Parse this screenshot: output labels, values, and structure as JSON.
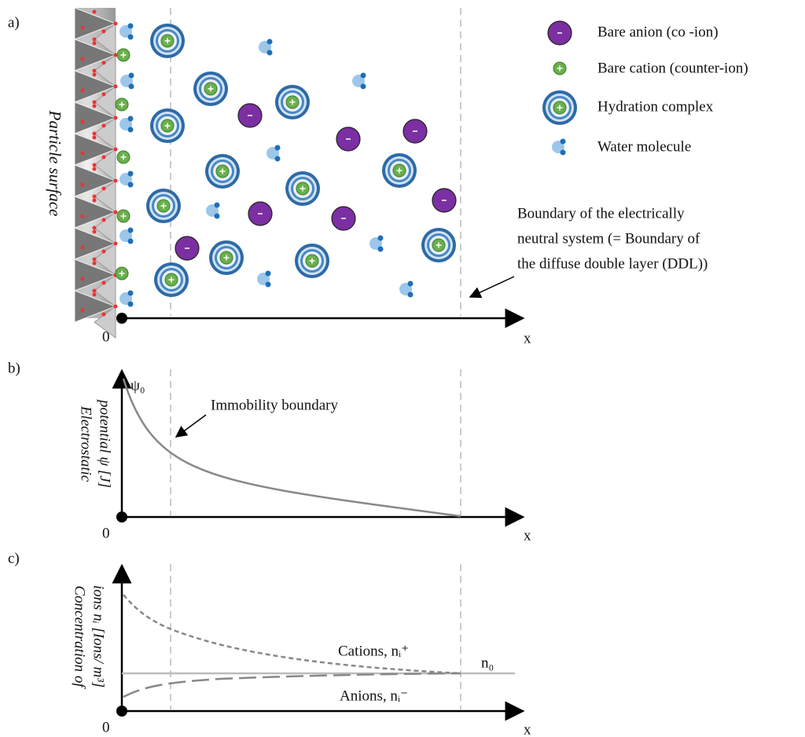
{
  "panels": {
    "a": {
      "label": "a)",
      "surface_label": "Particle surface",
      "origin": "0",
      "x_axis": "x",
      "legend": [
        "Bare anion (co -ion)",
        "Bare cation (counter-ion)",
        "Hydration complex",
        "Water molecule"
      ],
      "boundary_note": [
        "Boundary of the electrically",
        "neutral system (= Boundary of",
        "the diffuse double layer (DDL))"
      ]
    },
    "b": {
      "label": "b)",
      "origin": "0",
      "x_axis": "x",
      "y_label": [
        "Electrostatic",
        "potential ψ [J]"
      ],
      "psi0": "ψ₀",
      "annotation": "Immobility boundary"
    },
    "c": {
      "label": "c)",
      "origin": "0",
      "x_axis": "x",
      "y_label": [
        "Concentration of",
        "ions nᵢ [Ions/ m³]"
      ],
      "cations": "Cations, nᵢ⁺",
      "anions": "Anions, nᵢ⁻",
      "n0": "n₀"
    }
  }
}
